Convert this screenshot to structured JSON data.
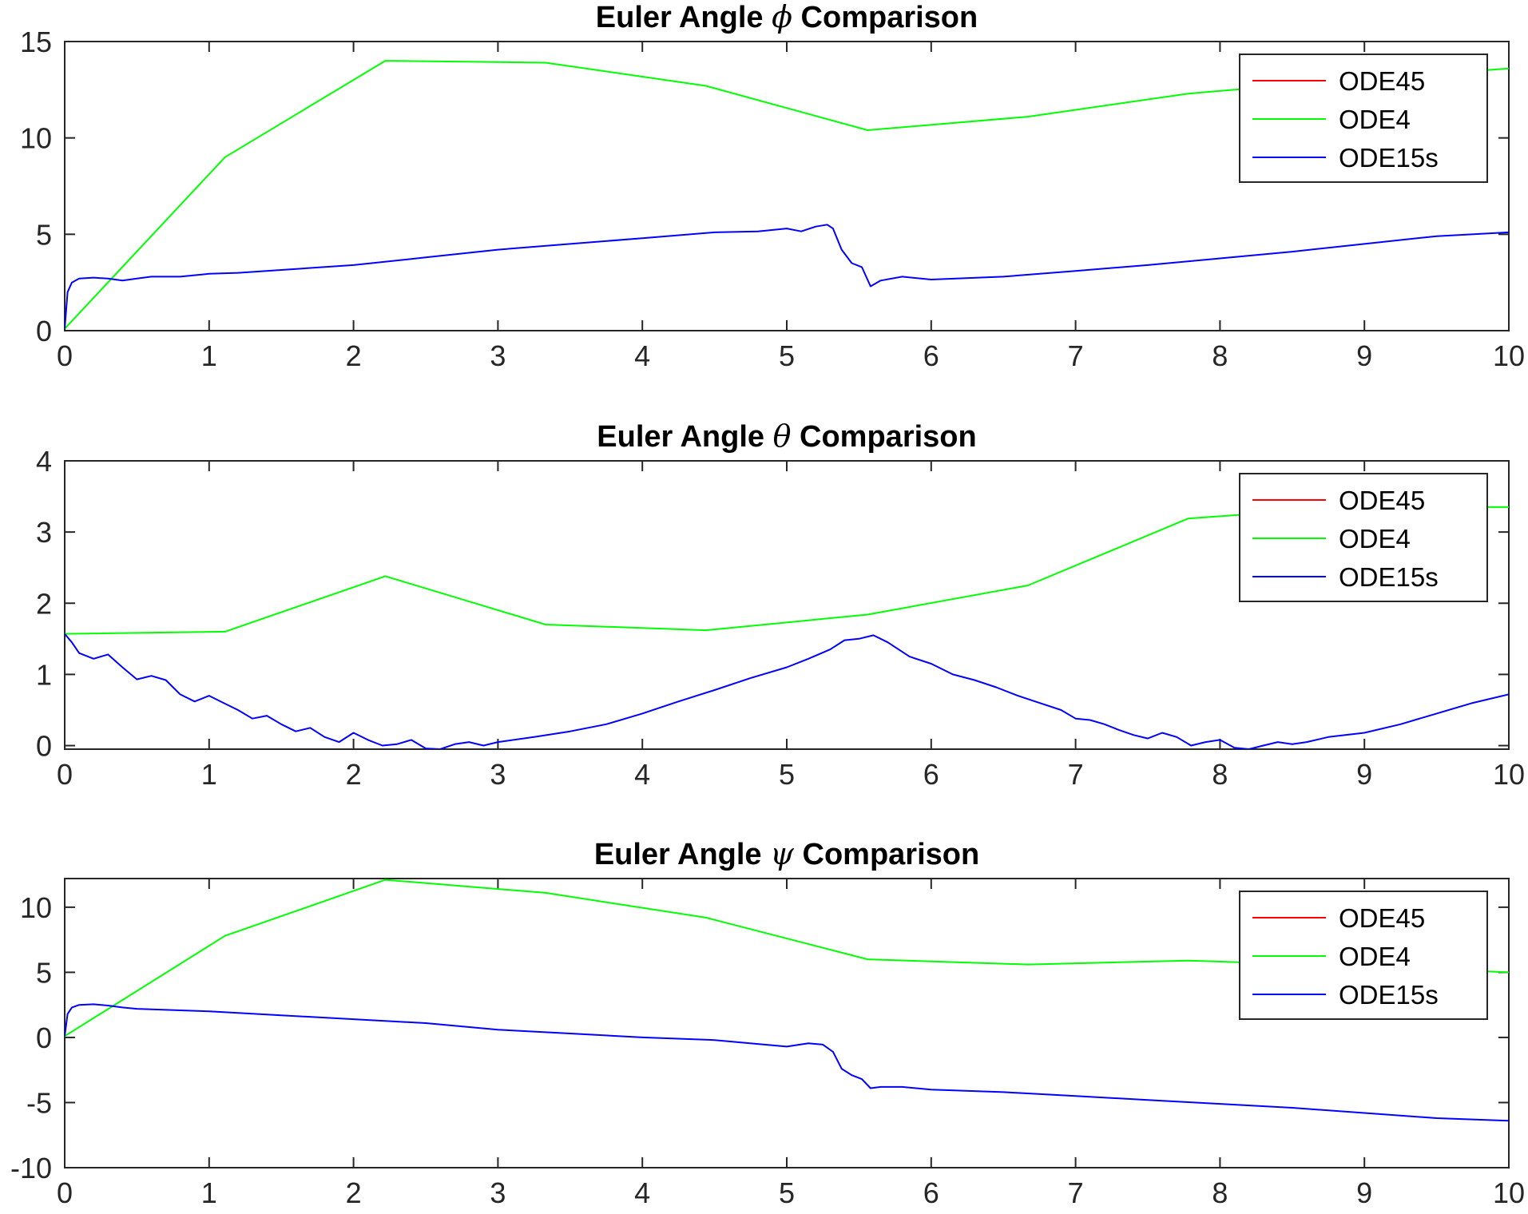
{
  "chart_data": [
    {
      "type": "line",
      "title": {
        "prefix": "Euler Angle",
        "symbol": "ϕ",
        "suffix": "Comparison"
      },
      "xlim": [
        0,
        10
      ],
      "ylim": [
        0,
        15
      ],
      "xticks": [
        0,
        1,
        2,
        3,
        4,
        5,
        6,
        7,
        8,
        9,
        10
      ],
      "yticks": [
        0,
        5,
        10,
        15
      ],
      "legend_position": "top-right",
      "series": [
        {
          "name": "ODE45",
          "color": "#ff0000",
          "x": [],
          "y": []
        },
        {
          "name": "ODE4",
          "color": "#00ff00",
          "x": [
            0,
            1.11,
            2.22,
            3.33,
            4.44,
            5.56,
            6.67,
            7.78,
            8.89,
            10
          ],
          "y": [
            0.1,
            9.0,
            14.0,
            13.9,
            12.7,
            10.4,
            11.1,
            12.3,
            13.0,
            13.6
          ]
        },
        {
          "name": "ODE15s",
          "color": "#0000ff",
          "x": [
            0,
            0.02,
            0.05,
            0.1,
            0.2,
            0.3,
            0.4,
            0.5,
            0.6,
            0.8,
            1.0,
            1.2,
            1.5,
            2.0,
            2.5,
            3.0,
            3.5,
            4.0,
            4.5,
            4.8,
            5.0,
            5.1,
            5.2,
            5.28,
            5.32,
            5.38,
            5.45,
            5.52,
            5.58,
            5.65,
            5.8,
            6.0,
            6.5,
            7.0,
            7.5,
            8.0,
            8.5,
            9.0,
            9.5,
            10.0
          ],
          "y": [
            0.1,
            2.0,
            2.5,
            2.7,
            2.75,
            2.7,
            2.6,
            2.7,
            2.8,
            2.8,
            2.95,
            3.0,
            3.15,
            3.4,
            3.8,
            4.2,
            4.5,
            4.8,
            5.1,
            5.15,
            5.3,
            5.15,
            5.4,
            5.5,
            5.3,
            4.2,
            3.5,
            3.3,
            2.3,
            2.6,
            2.8,
            2.65,
            2.8,
            3.1,
            3.4,
            3.75,
            4.1,
            4.5,
            4.9,
            5.1
          ]
        }
      ]
    },
    {
      "type": "line",
      "title": {
        "prefix": "Euler Angle",
        "symbol": "θ",
        "suffix": "Comparison"
      },
      "xlim": [
        0,
        10
      ],
      "ylim": [
        -0.05,
        4
      ],
      "xticks": [
        0,
        1,
        2,
        3,
        4,
        5,
        6,
        7,
        8,
        9,
        10
      ],
      "yticks": [
        0,
        1,
        2,
        3,
        4
      ],
      "legend_position": "top-right",
      "series": [
        {
          "name": "ODE45",
          "color": "#ff0000",
          "x": [],
          "y": []
        },
        {
          "name": "ODE4",
          "color": "#00ff00",
          "x": [
            0,
            1.11,
            2.22,
            3.33,
            4.44,
            5.56,
            6.67,
            7.78,
            8.89,
            10
          ],
          "y": [
            1.57,
            1.6,
            2.38,
            1.7,
            1.62,
            1.84,
            2.25,
            3.19,
            3.35,
            3.35
          ]
        },
        {
          "name": "ODE15s",
          "color": "#0000ff",
          "x": [
            0,
            0.05,
            0.1,
            0.2,
            0.3,
            0.4,
            0.5,
            0.6,
            0.7,
            0.8,
            0.9,
            1.0,
            1.1,
            1.2,
            1.3,
            1.4,
            1.5,
            1.6,
            1.7,
            1.8,
            1.9,
            2.0,
            2.1,
            2.2,
            2.3,
            2.4,
            2.5,
            2.6,
            2.7,
            2.8,
            2.9,
            3.0,
            3.25,
            3.5,
            3.75,
            4.0,
            4.25,
            4.5,
            4.75,
            5.0,
            5.15,
            5.3,
            5.4,
            5.5,
            5.6,
            5.7,
            5.85,
            6.0,
            6.15,
            6.3,
            6.45,
            6.6,
            6.75,
            6.9,
            7.0,
            7.1,
            7.2,
            7.3,
            7.4,
            7.5,
            7.6,
            7.7,
            7.8,
            7.9,
            8.0,
            8.1,
            8.2,
            8.3,
            8.4,
            8.5,
            8.6,
            8.75,
            9.0,
            9.25,
            9.5,
            9.75,
            10.0
          ],
          "y": [
            1.57,
            1.45,
            1.3,
            1.22,
            1.28,
            1.1,
            0.93,
            0.98,
            0.92,
            0.72,
            0.62,
            0.7,
            0.6,
            0.5,
            0.38,
            0.42,
            0.3,
            0.2,
            0.25,
            0.12,
            0.05,
            0.18,
            0.08,
            0.0,
            0.02,
            0.08,
            -0.04,
            -0.05,
            0.02,
            0.05,
            0.0,
            0.05,
            0.12,
            0.2,
            0.3,
            0.45,
            0.62,
            0.78,
            0.95,
            1.1,
            1.22,
            1.35,
            1.48,
            1.5,
            1.55,
            1.45,
            1.25,
            1.15,
            1.0,
            0.92,
            0.82,
            0.7,
            0.6,
            0.5,
            0.38,
            0.36,
            0.3,
            0.22,
            0.15,
            0.1,
            0.18,
            0.12,
            0.0,
            0.05,
            0.08,
            -0.03,
            -0.05,
            0.0,
            0.05,
            0.02,
            0.05,
            0.12,
            0.18,
            0.3,
            0.45,
            0.6,
            0.72
          ]
        }
      ]
    },
    {
      "type": "line",
      "title": {
        "prefix": "Euler Angle",
        "symbol": "ψ",
        "suffix": "Comparison"
      },
      "xlim": [
        0,
        10
      ],
      "ylim": [
        -10,
        12.2
      ],
      "xticks": [
        0,
        1,
        2,
        3,
        4,
        5,
        6,
        7,
        8,
        9,
        10
      ],
      "yticks": [
        -10,
        -5,
        0,
        5,
        10
      ],
      "legend_position": "top-right",
      "series": [
        {
          "name": "ODE45",
          "color": "#ff0000",
          "x": [],
          "y": []
        },
        {
          "name": "ODE4",
          "color": "#00ff00",
          "x": [
            0,
            1.11,
            2.22,
            3.33,
            4.44,
            5.56,
            6.67,
            7.78,
            8.89,
            10
          ],
          "y": [
            0.1,
            7.8,
            12.1,
            11.1,
            9.2,
            6.0,
            5.6,
            5.9,
            5.5,
            5.0
          ]
        },
        {
          "name": "ODE15s",
          "color": "#0000ff",
          "x": [
            0,
            0.02,
            0.05,
            0.1,
            0.2,
            0.3,
            0.4,
            0.5,
            1.0,
            1.5,
            2.0,
            2.5,
            3.0,
            3.5,
            4.0,
            4.5,
            4.8,
            5.0,
            5.15,
            5.25,
            5.32,
            5.38,
            5.45,
            5.52,
            5.58,
            5.65,
            5.8,
            6.0,
            6.5,
            7.0,
            7.5,
            8.0,
            8.5,
            9.0,
            9.5,
            10.0
          ],
          "y": [
            0.1,
            1.8,
            2.3,
            2.5,
            2.55,
            2.45,
            2.3,
            2.2,
            2.0,
            1.7,
            1.4,
            1.1,
            0.6,
            0.3,
            0.0,
            -0.2,
            -0.5,
            -0.7,
            -0.45,
            -0.55,
            -1.1,
            -2.4,
            -2.9,
            -3.2,
            -3.9,
            -3.8,
            -3.8,
            -4.0,
            -4.2,
            -4.5,
            -4.8,
            -5.1,
            -5.4,
            -5.8,
            -6.2,
            -6.4
          ]
        }
      ]
    }
  ]
}
